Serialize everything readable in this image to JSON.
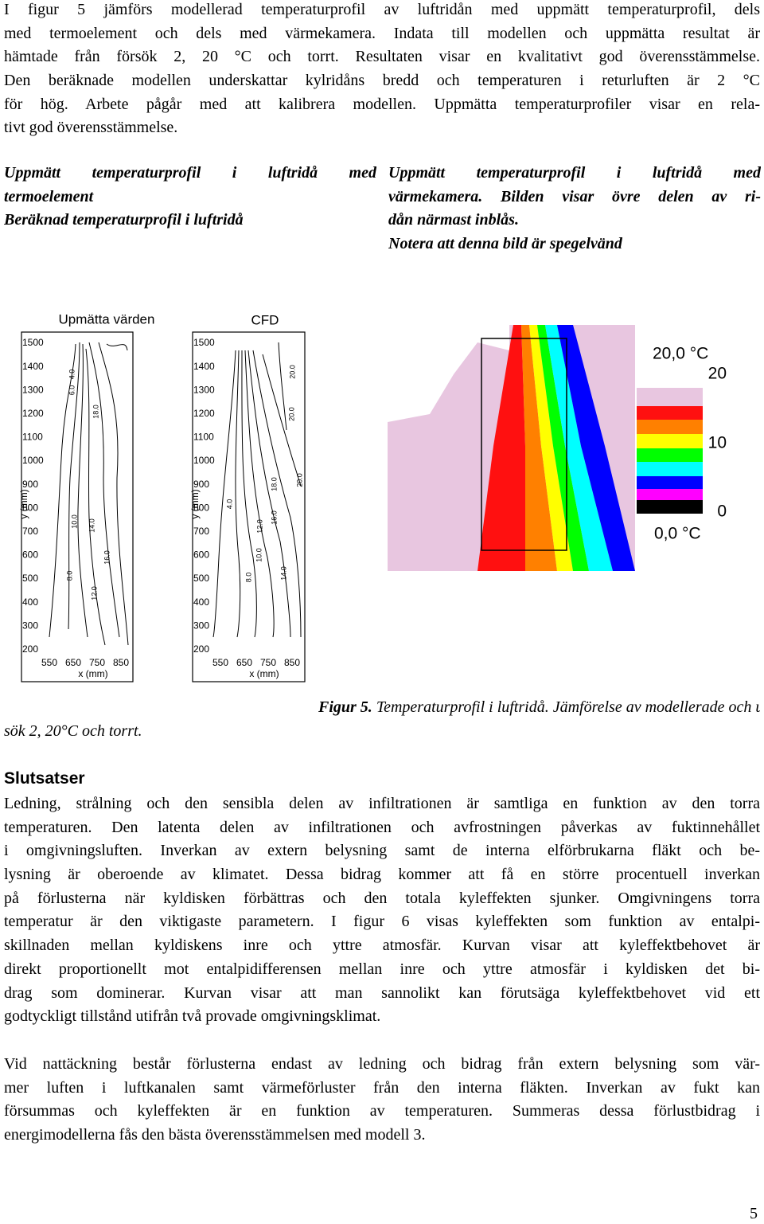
{
  "intro": {
    "lines": [
      "I figur 5 jämförs modellerad temperaturprofil av luftridån med uppmätt temperaturprofil, dels",
      "med termoelement och dels med värmekamera. Indata till modellen och uppmätta resultat är",
      "hämtade från försök 2, 20 °C och torrt. Resultaten visar en kvalitativt god överensstämmelse.",
      "Den beräknade modellen underskattar kylridåns bredd och temperaturen i returluften är 2 °C",
      "för hög. Arbete pågår med att kalibrera modellen. Uppmätta temperaturprofiler visar en rela-",
      "tivt god överensstämmelse."
    ]
  },
  "figure_labels": {
    "left": [
      "Uppmätt temperaturprofil i luftridå med",
      "termoelement",
      "Beräknad temperaturprofil i luftridå"
    ],
    "right": [
      "Uppmätt temperaturprofil i luftridå med",
      "värmekamera. Bilden visar övre delen av ri-",
      "dån närmast inblås.",
      "Notera att denna bild är spegelvänd"
    ]
  },
  "figures": [
    {
      "title": "Upmätta värden",
      "yticks": [
        1500,
        1400,
        1300,
        1200,
        1100,
        1000,
        900,
        800,
        700,
        600,
        500,
        400,
        300,
        200
      ],
      "xticks": [
        550,
        650,
        750,
        850
      ],
      "xlabel": "x (mm)",
      "ylabel": "y (mm)",
      "contour_labels": [
        "4.0",
        "6.0",
        "18.0",
        "10.0",
        "14.0",
        "16.0",
        "8.0",
        "12.0"
      ]
    },
    {
      "title": "CFD",
      "yticks": [
        1500,
        1400,
        1300,
        1200,
        1100,
        1000,
        900,
        800,
        700,
        600,
        500,
        400,
        300,
        200
      ],
      "xticks": [
        550,
        650,
        750,
        850
      ],
      "xlabel": "x (mm)",
      "ylabel": "y (mm)",
      "contour_labels": [
        "20.0",
        "20.0",
        "18.0",
        "20.0",
        "4.0",
        "16.0",
        "12.0",
        "10.0",
        "8.0",
        "14.0"
      ]
    }
  ],
  "thermal_image": {
    "colorbar_top": "20,0 °C",
    "colorbar_bottom": "0,0 °C",
    "colorbar_ticks": [
      20,
      10,
      0
    ]
  },
  "caption": {
    "label": "Figur 5.",
    "lines": [
      "Temperaturprofil i luftridå. Jämförelse av modellerade och uppmätta resultat. För-",
      "sök 2, 20°C och torrt."
    ]
  },
  "section": {
    "heading": "Slutsatser",
    "paragraphs": [
      [
        "Ledning, strålning och den sensibla delen av infiltrationen är samtliga en funktion av den torra",
        "temperaturen. Den latenta delen av infiltrationen och avfrostningen påverkas av fuktinnehållet",
        "i omgivningsluften. Inverkan av extern belysning samt de interna elförbrukarna fläkt och be-",
        "lysning är oberoende av klimatet. Dessa bidrag kommer att få en större procentuell inverkan",
        "på förlusterna när kyldisken förbättras och den totala kyleffekten sjunker. Omgivningens torra",
        "temperatur är den viktigaste parametern. I figur 6 visas kyleffekten som funktion av entalpi-",
        "skillnaden mellan kyldiskens inre och yttre atmosfär. Kurvan visar att kyleffektbehovet är",
        "direkt proportionellt mot entalpidifferensen mellan inre och yttre atmosfär i kyldisken det bi-",
        "drag som dominerar. Kurvan visar att man sannolikt kan förutsäga kyleffektbehovet vid ett",
        "godtyckligt tillstånd utifrån två provade omgivningsklimat."
      ],
      [
        "Vid nattäckning består förlusterna endast av ledning och bidrag från extern belysning som vär-",
        "mer luften i luftkanalen samt värmeförluster från den interna fläkten. Inverkan av fukt kan",
        "försummas och kyleffekten är en funktion av temperaturen. Summeras dessa förlustbidrag i",
        "energimodellerna fås den bästa överensstämmelsen med modell 3."
      ]
    ]
  },
  "page_number": "5"
}
